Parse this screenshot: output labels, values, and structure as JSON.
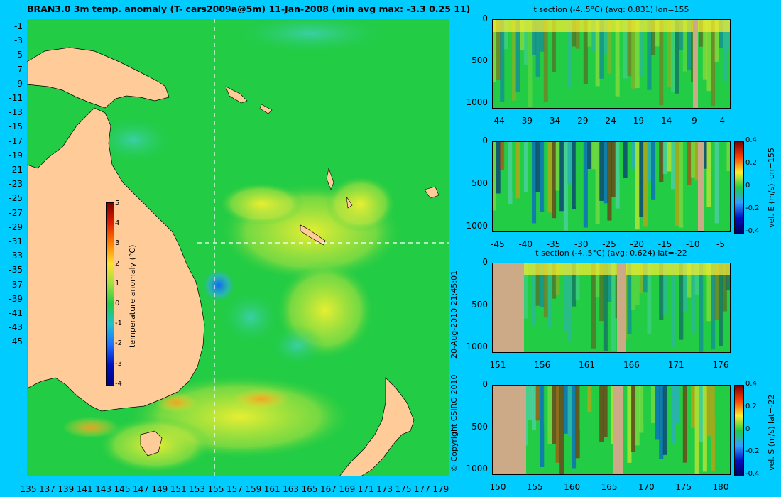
{
  "map": {
    "title": "BRAN3.0 3m temp. anomaly (T- cars2009a@5m) 11-Jan-2008 (min avg max: -3.3 0.25 11)",
    "lat_ticks": [
      "-1",
      "-3",
      "-5",
      "-7",
      "-9",
      "-11",
      "-13",
      "-15",
      "-17",
      "-19",
      "-21",
      "-23",
      "-25",
      "-27",
      "-29",
      "-31",
      "-33",
      "-35",
      "-37",
      "-39",
      "-41",
      "-43",
      "-45"
    ],
    "lon_ticks": [
      "135",
      "137",
      "139",
      "141",
      "143",
      "145",
      "147",
      "149",
      "151",
      "153",
      "155",
      "157",
      "159",
      "161",
      "163",
      "165",
      "167",
      "169",
      "171",
      "173",
      "175",
      "177",
      "179"
    ],
    "colorbar": {
      "label": "temperature anomaly (°C)",
      "ticks": [
        "5",
        "4",
        "3",
        "2",
        "1",
        "0",
        "-1",
        "-2",
        "-3",
        "-4"
      ]
    }
  },
  "side_text": {
    "copyright": "© Copyright CSIRO 2010",
    "timestamp": "20-Aug-2010 21:45:01"
  },
  "panels": [
    {
      "title": "t section (-4..5°C) (avg: 0.831) lon=155",
      "y_ticks": [
        "0",
        "500",
        "1000"
      ],
      "x_ticks": [
        "-44",
        "-39",
        "-34",
        "-29",
        "-24",
        "-19",
        "-14",
        "-9",
        "-4"
      ],
      "colorbar_label": "",
      "colorbar_ticks": []
    },
    {
      "title": "",
      "y_ticks": [
        "0",
        "500",
        "1000"
      ],
      "x_ticks": [
        "-45",
        "-40",
        "-35",
        "-30",
        "-25",
        "-20",
        "-15",
        "-10",
        "-5"
      ],
      "colorbar_label": "vel. E (m/s) lon=155",
      "colorbar_ticks": [
        "0.4",
        "0.2",
        "0",
        "-0.2",
        "-0.4"
      ]
    },
    {
      "title": "t section (-4..5°C) (avg: 0.624) lat=-22",
      "y_ticks": [
        "0",
        "500",
        "1000"
      ],
      "x_ticks": [
        "151",
        "156",
        "161",
        "166",
        "171",
        "176"
      ],
      "colorbar_label": "",
      "colorbar_ticks": []
    },
    {
      "title": "",
      "y_ticks": [
        "0",
        "500",
        "1000"
      ],
      "x_ticks": [
        "150",
        "155",
        "160",
        "165",
        "170",
        "175",
        "180"
      ],
      "colorbar_label": "vel. S (m/s) lat=-22",
      "colorbar_ticks": [
        "0.4",
        "0.2",
        "0",
        "-0.2",
        "-0.4"
      ]
    }
  ],
  "colors": {
    "background": "#00ccff",
    "land": "#ffcc99",
    "section_land": "#ccaa88",
    "ocean_base": "#22cc44"
  }
}
